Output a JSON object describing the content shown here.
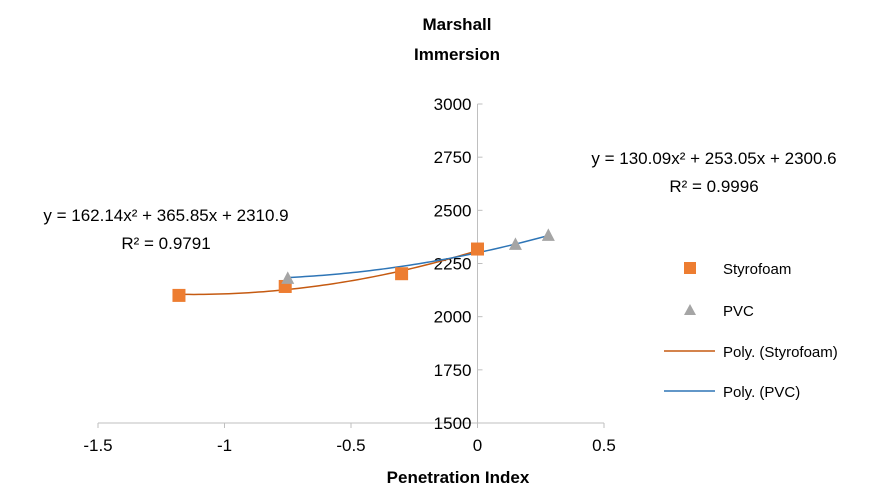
{
  "chart_data": {
    "type": "scatter",
    "title_lines": [
      "Marshall",
      "Immersion"
    ],
    "xlabel": "Penetration Index",
    "ylabel": "",
    "xlim": [
      -1.5,
      0.5
    ],
    "ylim": [
      1500,
      3000
    ],
    "x_ticks": [
      -1.5,
      -1,
      -0.5,
      0,
      0.5
    ],
    "y_ticks": [
      1500,
      1750,
      2000,
      2250,
      2500,
      2750,
      3000
    ],
    "x_tick_labels": [
      "-1.5",
      "-1",
      "-0.5",
      "0",
      "0.5"
    ],
    "y_tick_labels": [
      "1500",
      "1750",
      "2000",
      "2250",
      "2500",
      "2750",
      "3000"
    ],
    "grid": false,
    "legend_position": "right",
    "series": [
      {
        "name": "Styrofoam",
        "marker": "square",
        "color": "#ED7D31",
        "x": [
          -1.18,
          -0.76,
          -0.3,
          0.0
        ],
        "y": [
          2100,
          2142,
          2202,
          2318
        ]
      },
      {
        "name": "PVC",
        "marker": "triangle",
        "color": "#A5A5A5",
        "x": [
          -0.75,
          0.15,
          0.28
        ],
        "y": [
          2180,
          2340,
          2382
        ]
      }
    ],
    "trendlines": [
      {
        "name": "Poly. (Styrofoam)",
        "color": "#C55A11",
        "coefficients": [
          162.14,
          365.85,
          2310.9
        ],
        "x_range": [
          -1.18,
          0.0
        ],
        "equation": "y = 162.14x² + 365.85x + 2310.9",
        "r_squared": "R² = 0.9791"
      },
      {
        "name": "Poly. (PVC)",
        "color": "#2E75B6",
        "coefficients": [
          130.09,
          253.05,
          2300.6
        ],
        "x_range": [
          -0.75,
          0.28
        ],
        "equation": "y = 130.09x² + 253.05x + 2300.6",
        "r_squared": "R² = 0.9996"
      }
    ],
    "legend": [
      "Styrofoam",
      "PVC",
      "Poly. (Styrofoam)",
      "Poly. (PVC)"
    ]
  }
}
